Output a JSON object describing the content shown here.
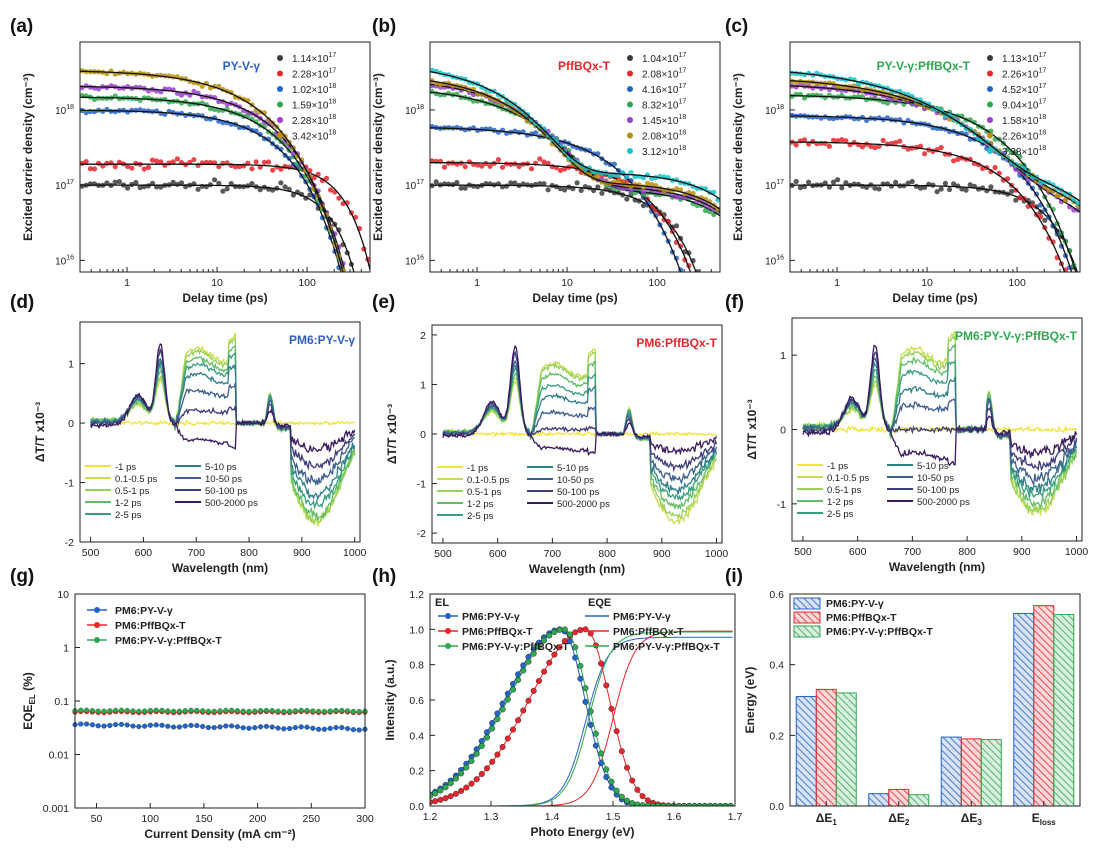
{
  "colors": {
    "black": "#3c3c3c",
    "red": "#e8262b",
    "blue": "#2563c9",
    "green": "#2fa84f",
    "purple": "#9b3fcf",
    "gold": "#b8900a",
    "cyan": "#18c3cc",
    "blueTitle": "#2c5fc4",
    "redTitle": "#e8262b",
    "greenTitle": "#2fa84f"
  },
  "panels": [
    {
      "label": "(a)",
      "type": "decay",
      "title": "PY-V-γ",
      "titleColor": "blueTitle",
      "xlabel": "Delay time (ps)",
      "ylabel": "Excited carrier density (cm⁻³)",
      "xTicks": [
        "1",
        "10",
        "100"
      ],
      "yTicks": [
        [
          "10",
          "16"
        ],
        [
          "10",
          "17"
        ],
        [
          "10",
          "18"
        ]
      ],
      "series": [
        {
          "name": "1.14×10¹⁷",
          "m": "1.14",
          "e": "17",
          "color": "black",
          "n0": 1e+17,
          "tau": 180,
          "k": 1.6,
          "floor": 0
        },
        {
          "name": "2.28×10¹⁷",
          "m": "2.28",
          "e": "17",
          "color": "red",
          "n0": 1.9e+17,
          "tau": 240,
          "k": 1.6,
          "floor": 0
        },
        {
          "name": "1.02×10¹⁸",
          "m": "1.02",
          "e": "18",
          "color": "blue",
          "n0": 1e+18,
          "tau": 40,
          "k": 0.9,
          "floor": 0
        },
        {
          "name": "1.59×10¹⁸",
          "m": "1.59",
          "e": "18",
          "color": "green",
          "n0": 1.5e+18,
          "tau": 35,
          "k": 0.85,
          "floor": 0
        },
        {
          "name": "2.28×10¹⁸",
          "m": "2.28",
          "e": "18",
          "color": "purple",
          "n0": 2.1e+18,
          "tau": 30,
          "k": 0.8,
          "floor": 0
        },
        {
          "name": "3.42×10¹⁸",
          "m": "3.42",
          "e": "18",
          "color": "gold",
          "n0": 3.4e+18,
          "tau": 22,
          "k": 0.75,
          "floor": 0
        }
      ]
    },
    {
      "label": "(b)",
      "type": "decay",
      "title": "PffBQx-T",
      "titleColor": "redTitle",
      "xlabel": "Delay time (ps)",
      "ylabel": "Excited carrier density (cm⁻³)",
      "xTicks": [
        "1",
        "10",
        "100"
      ],
      "yTicks": [
        [
          "10",
          "16"
        ],
        [
          "10",
          "17"
        ],
        [
          "10",
          "18"
        ]
      ],
      "series": [
        {
          "name": "1.04×10¹⁷",
          "m": "1.04",
          "e": "17",
          "color": "black",
          "n0": 1e+17,
          "tau": 120,
          "k": 1.2,
          "floor": 0
        },
        {
          "name": "2.08×10¹⁷",
          "m": "2.08",
          "e": "17",
          "color": "red",
          "n0": 2e+17,
          "tau": 70,
          "k": 1.0,
          "floor": 0
        },
        {
          "name": "4.16×10¹⁷",
          "m": "4.16",
          "e": "17",
          "color": "blue",
          "n0": 6e+17,
          "tau": 25,
          "k": 0.75,
          "floor": 0
        },
        {
          "name": "8.32×10¹⁷",
          "m": "8.32",
          "e": "17",
          "color": "green",
          "n0": 2e+18,
          "tau": 3,
          "k": 0.7,
          "floor": 9e+16
        },
        {
          "name": "1.45×10¹⁸",
          "m": "1.45",
          "e": "18",
          "color": "purple",
          "n0": 2.6e+18,
          "tau": 2.5,
          "k": 0.72,
          "floor": 1e+17
        },
        {
          "name": "2.08×10¹⁸",
          "m": "2.08",
          "e": "18",
          "color": "gold",
          "n0": 3e+18,
          "tau": 2.0,
          "k": 0.72,
          "floor": 1.1e+17
        },
        {
          "name": "3.12×10¹⁸",
          "m": "3.12",
          "e": "18",
          "color": "cyan",
          "n0": 4.2e+18,
          "tau": 1.6,
          "k": 0.7,
          "floor": 1.5e+17
        }
      ]
    },
    {
      "label": "(c)",
      "type": "decay",
      "title": "PY-V-γ:PffBQx-T",
      "titleColor": "greenTitle",
      "xlabel": "Delay time (ps)",
      "ylabel": "Excited carrier density (cm⁻³)",
      "xTicks": [
        "1",
        "10",
        "100"
      ],
      "yTicks": [
        [
          "10",
          "16"
        ],
        [
          "10",
          "17"
        ],
        [
          "10",
          "18"
        ]
      ],
      "series": [
        {
          "name": "1.13×10¹⁷",
          "m": "1.13",
          "e": "17",
          "color": "black",
          "n0": 1e+17,
          "tau": 220,
          "k": 1.3,
          "floor": 0
        },
        {
          "name": "2.26×10¹⁷",
          "m": "2.26",
          "e": "17",
          "color": "red",
          "n0": 3.8e+17,
          "tau": 60,
          "k": 0.8,
          "floor": 0
        },
        {
          "name": "4.52×10¹⁷",
          "m": "4.52",
          "e": "17",
          "color": "blue",
          "n0": 8.5e+17,
          "tau": 50,
          "k": 0.75,
          "floor": 0
        },
        {
          "name": "9.04×10¹⁷",
          "m": "9.04",
          "e": "17",
          "color": "green",
          "n0": 1.6e+18,
          "tau": 40,
          "k": 0.7,
          "floor": 0
        },
        {
          "name": "1.58×10¹⁸",
          "m": "1.58",
          "e": "18",
          "color": "purple",
          "n0": 2.2e+18,
          "tau": 14,
          "k": 0.6,
          "floor": 1e+17
        },
        {
          "name": "2.26×10¹⁸",
          "m": "2.26",
          "e": "18",
          "color": "gold",
          "n0": 2.7e+18,
          "tau": 10,
          "k": 0.55,
          "floor": 1.2e+17
        },
        {
          "name": "3.38×10¹⁸",
          "m": "3.38",
          "e": "18",
          "color": "cyan",
          "n0": 3.8e+18,
          "tau": 6,
          "k": 0.5,
          "floor": 1.4e+17
        }
      ]
    },
    {
      "label": "(d)",
      "type": "tas",
      "title": "PM6:PY-V-γ",
      "titleColor": "blueTitle",
      "xlabel": "Wavelength (nm)",
      "ylabel": "ΔT/T x10⁻³",
      "ylim": [
        -2,
        1.7
      ],
      "yTicks": [
        -2,
        -1,
        0,
        1
      ],
      "xTicks": [
        500,
        600,
        700,
        800,
        900,
        1000
      ],
      "gap": [
        775,
        830
      ],
      "legend": [
        "-1 ps",
        "0.1-0.5 ps",
        "0.5-1 ps",
        "1-2 ps",
        "2-5 ps",
        "5-10 ps",
        "10-50 ps",
        "50-100 ps",
        "500-2000 ps"
      ],
      "curveScale": [
        1.0,
        1.0,
        1.0,
        0.95,
        0.9,
        0.85,
        0.75,
        0.6,
        0.4
      ],
      "bleach": [
        1.2,
        1.15,
        1.1,
        1.0,
        0.9,
        0.75,
        0.5,
        0.2,
        -0.3
      ],
      "lowBand": [
        -1.6,
        -1.5,
        -1.5,
        -1.5,
        -1.4,
        -1.3,
        -1.2,
        -1.1,
        -1.0
      ],
      "peak": [
        0.7,
        0.75,
        0.8,
        0.9,
        1.0,
        1.1,
        1.2,
        1.35,
        1.5
      ]
    },
    {
      "label": "(e)",
      "type": "tas",
      "title": "PM6:PffBQx-T",
      "titleColor": "redTitle",
      "xlabel": "Wavelength (nm)",
      "ylabel": "ΔT/T x10⁻³",
      "ylim": [
        -2.2,
        2.2
      ],
      "yTicks": [
        -2,
        -1,
        0,
        1,
        2
      ],
      "xTicks": [
        500,
        600,
        700,
        800,
        900,
        1000
      ],
      "gap": [
        780,
        830
      ],
      "legend": [
        "-1 ps",
        "0.1-0.5 ps",
        "0.5-1 ps",
        "1-2 ps",
        "2-5 ps",
        "5-10 ps",
        "10-50 ps",
        "50-100 ps",
        "500-2000 ps"
      ],
      "curveScale": [
        1.0,
        1.0,
        1.0,
        0.95,
        0.9,
        0.85,
        0.75,
        0.6,
        0.4
      ],
      "bleach": [
        1.4,
        1.3,
        1.25,
        1.1,
        0.9,
        0.7,
        0.4,
        0.1,
        -0.3
      ],
      "lowBand": [
        -1.8,
        -1.6,
        -1.5,
        -1.4,
        -1.3,
        -1.2,
        -1.1,
        -1.0,
        -0.8
      ],
      "peak": [
        1.0,
        1.1,
        1.2,
        1.3,
        1.4,
        1.5,
        1.6,
        1.8,
        2.0
      ]
    },
    {
      "label": "(f)",
      "type": "tas",
      "title": "PM6:PY-V-γ:PffBQx-T",
      "titleColor": "greenTitle",
      "xlabel": "Wavelength (nm)",
      "ylabel": "ΔT/T x10⁻³",
      "ylim": [
        -1.5,
        1.5
      ],
      "yTicks": [
        -1,
        0,
        1
      ],
      "xTicks": [
        500,
        600,
        700,
        800,
        900,
        1000
      ],
      "gap": [
        780,
        835
      ],
      "legend": [
        "-1 ps",
        "0.1-0.5 ps",
        "0.5-1 ps",
        "1-2 ps",
        "2-5 ps",
        "5-10 ps",
        "10-50 ps",
        "50-100 ps",
        "500-2000 ps"
      ],
      "curveScale": [
        1.0,
        1.0,
        1.0,
        0.95,
        0.9,
        0.85,
        0.75,
        0.6,
        0.4
      ],
      "bleach": [
        1.05,
        1.0,
        0.95,
        0.85,
        0.7,
        0.5,
        0.3,
        0.0,
        -0.35
      ],
      "lowBand": [
        -1.1,
        -1.0,
        -1.0,
        -0.95,
        -0.9,
        -0.85,
        -0.8,
        -0.75,
        -0.7
      ],
      "peak": [
        0.55,
        0.6,
        0.65,
        0.75,
        0.85,
        0.95,
        1.05,
        1.15,
        1.3
      ]
    },
    {
      "label": "(g)",
      "type": "eqe",
      "xlabel": "Current Density (mA cm⁻²)",
      "ylabel": "EQE",
      "ylabelSub": "EL",
      "ylabelUnit": " (%)",
      "xlim": [
        30,
        300
      ],
      "xTicks": [
        50,
        100,
        150,
        200,
        250,
        300
      ],
      "yTicks": [
        "0.001",
        "0.01",
        "0.1",
        "1",
        "10"
      ],
      "series": [
        {
          "name": "PM6:PY-V-γ",
          "color": "blue",
          "start": 0.036,
          "end": 0.03
        },
        {
          "name": "PM6:PffBQx-T",
          "color": "red",
          "start": 0.062,
          "end": 0.062
        },
        {
          "name": "PM6:PY-V-γ:PffBQx-T",
          "color": "green",
          "start": 0.066,
          "end": 0.065
        }
      ]
    },
    {
      "label": "(h)",
      "type": "eleqe",
      "xlabel": "Photo Energy (eV)",
      "ylabel": "Intensity (a.u.)",
      "xlim": [
        1.2,
        1.7
      ],
      "ylim": [
        0,
        1.2
      ],
      "xTicks": [
        1.2,
        1.3,
        1.4,
        1.5,
        1.6,
        1.7
      ],
      "yTicks": [
        0.0,
        0.2,
        0.4,
        0.6,
        0.8,
        1.0,
        1.2
      ],
      "elLabel": "EL",
      "eqeLabel": "EQE",
      "el": [
        {
          "name": "PM6:PY-V-γ",
          "color": "blue",
          "peak": 1.415
        },
        {
          "name": "PM6:PffBQx-T",
          "color": "red",
          "peak": 1.455
        },
        {
          "name": "PM6:PY-V-γ:PffBQx-T",
          "color": "green",
          "peak": 1.42
        }
      ],
      "eqe": [
        {
          "name": "PM6:PY-V-γ",
          "color": "blue",
          "edge": 1.455,
          "top": 0.955
        },
        {
          "name": "PM6:PffBQx-T",
          "color": "red",
          "edge": 1.5,
          "top": 0.99
        },
        {
          "name": "PM6:PY-V-γ:PffBQx-T",
          "color": "green",
          "edge": 1.46,
          "top": 0.985
        }
      ]
    },
    {
      "label": "(i)",
      "type": "bars",
      "ylabel": "Energy (eV)",
      "ylim": [
        0,
        0.6
      ],
      "yTicks": [
        0.0,
        0.2,
        0.4,
        0.6
      ],
      "categories": [
        {
          "main": "ΔE",
          "sub": "1"
        },
        {
          "main": "ΔE",
          "sub": "2"
        },
        {
          "main": "ΔE",
          "sub": "3"
        },
        {
          "main": "E",
          "sub": "loss"
        }
      ],
      "series": [
        {
          "name": "PM6:PY-V-γ",
          "color": "blue",
          "values": [
            0.31,
            0.035,
            0.195,
            0.545
          ]
        },
        {
          "name": "PM6:PffBQx-T",
          "color": "red",
          "values": [
            0.33,
            0.047,
            0.19,
            0.567
          ]
        },
        {
          "name": "PM6:PY-V-γ:PffBQx-T",
          "color": "green",
          "values": [
            0.32,
            0.032,
            0.188,
            0.542
          ]
        }
      ]
    }
  ],
  "chart_data": [
    {
      "type": "scatter",
      "panel": "a",
      "title": "PY-V-γ",
      "xlabel": "Delay time (ps)",
      "ylabel": "Excited carrier density (cm⁻³)",
      "xscale": "log",
      "yscale": "log",
      "xlim": [
        0.3,
        500
      ],
      "ylim": [
        7000000000000000.0,
        8e+18
      ],
      "legend": [
        "1.14×10¹⁷",
        "2.28×10¹⁷",
        "1.02×10¹⁸",
        "1.59×10¹⁸",
        "2.28×10¹⁸",
        "3.42×10¹⁸"
      ]
    },
    {
      "type": "scatter",
      "panel": "b",
      "title": "PffBQx-T",
      "xlabel": "Delay time (ps)",
      "ylabel": "Excited carrier density (cm⁻³)",
      "xscale": "log",
      "yscale": "log",
      "xlim": [
        0.3,
        500
      ],
      "ylim": [
        7000000000000000.0,
        8e+18
      ],
      "legend": [
        "1.04×10¹⁷",
        "2.08×10¹⁷",
        "4.16×10¹⁷",
        "8.32×10¹⁷",
        "1.45×10¹⁸",
        "2.08×10¹⁸",
        "3.12×10¹⁸"
      ]
    },
    {
      "type": "scatter",
      "panel": "c",
      "title": "PY-V-γ:PffBQx-T",
      "xlabel": "Delay time (ps)",
      "ylabel": "Excited carrier density (cm⁻³)",
      "xscale": "log",
      "yscale": "log",
      "xlim": [
        0.3,
        500
      ],
      "ylim": [
        7000000000000000.0,
        8e+18
      ],
      "legend": [
        "1.13×10¹⁷",
        "2.26×10¹⁷",
        "4.52×10¹⁷",
        "9.04×10¹⁷",
        "1.58×10¹⁸",
        "2.26×10¹⁸",
        "3.38×10¹⁸"
      ]
    },
    {
      "type": "line",
      "panel": "d",
      "title": "PM6:PY-V-γ",
      "xlabel": "Wavelength (nm)",
      "ylabel": "ΔT/T x10⁻³",
      "xlim": [
        480,
        1010
      ],
      "ylim": [
        -2,
        1.7
      ]
    },
    {
      "type": "line",
      "panel": "e",
      "title": "PM6:PffBQx-T",
      "xlabel": "Wavelength (nm)",
      "ylabel": "ΔT/T x10⁻³",
      "xlim": [
        480,
        1010
      ],
      "ylim": [
        -2.2,
        2.2
      ]
    },
    {
      "type": "line",
      "panel": "f",
      "title": "PM6:PY-V-γ:PffBQx-T",
      "xlabel": "Wavelength (nm)",
      "ylabel": "ΔT/T x10⁻³",
      "xlim": [
        480,
        1010
      ],
      "ylim": [
        -1.5,
        1.5
      ]
    },
    {
      "type": "line",
      "panel": "g",
      "xlabel": "Current Density (mA cm⁻²)",
      "ylabel": "EQE_EL (%)",
      "yscale": "log",
      "xlim": [
        30,
        300
      ],
      "ylim": [
        0.001,
        10
      ],
      "series": [
        {
          "name": "PM6:PY-V-γ",
          "values": [
            0.036,
            0.03
          ]
        },
        {
          "name": "PM6:PffBQx-T",
          "values": [
            0.062,
            0.062
          ]
        },
        {
          "name": "PM6:PY-V-γ:PffBQx-T",
          "values": [
            0.066,
            0.065
          ]
        }
      ]
    },
    {
      "type": "line",
      "panel": "h",
      "xlabel": "Photo Energy (eV)",
      "ylabel": "Intensity (a.u.)",
      "xlim": [
        1.2,
        1.7
      ],
      "ylim": [
        0,
        1.2
      ],
      "el_peaks_eV": [
        1.415,
        1.455,
        1.42
      ],
      "eqe_plateau": [
        0.955,
        0.99,
        0.985
      ]
    },
    {
      "type": "bar",
      "panel": "i",
      "ylabel": "Energy (eV)",
      "ylim": [
        0,
        0.6
      ],
      "categories": [
        "ΔE1",
        "ΔE2",
        "ΔE3",
        "Eloss"
      ],
      "series": [
        {
          "name": "PM6:PY-V-γ",
          "values": [
            0.31,
            0.035,
            0.195,
            0.545
          ]
        },
        {
          "name": "PM6:PffBQx-T",
          "values": [
            0.33,
            0.047,
            0.19,
            0.567
          ]
        },
        {
          "name": "PM6:PY-V-γ:PffBQx-T",
          "values": [
            0.32,
            0.032,
            0.188,
            0.542
          ]
        }
      ]
    }
  ]
}
